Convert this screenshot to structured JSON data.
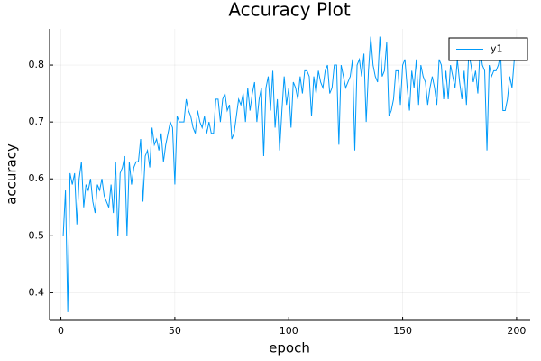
{
  "chart_data": {
    "type": "line",
    "title": "Accuracy Plot",
    "x_label": "epoch",
    "y_label": "accuracy",
    "x": [
      1,
      2,
      3,
      4,
      5,
      6,
      7,
      8,
      9,
      10,
      11,
      12,
      13,
      14,
      15,
      16,
      17,
      18,
      19,
      20,
      21,
      22,
      23,
      24,
      25,
      26,
      27,
      28,
      29,
      30,
      31,
      32,
      33,
      34,
      35,
      36,
      37,
      38,
      39,
      40,
      41,
      42,
      43,
      44,
      45,
      46,
      47,
      48,
      49,
      50,
      51,
      52,
      53,
      54,
      55,
      56,
      57,
      58,
      59,
      60,
      61,
      62,
      63,
      64,
      65,
      66,
      67,
      68,
      69,
      70,
      71,
      72,
      73,
      74,
      75,
      76,
      77,
      78,
      79,
      80,
      81,
      82,
      83,
      84,
      85,
      86,
      87,
      88,
      89,
      90,
      91,
      92,
      93,
      94,
      95,
      96,
      97,
      98,
      99,
      100,
      101,
      102,
      103,
      104,
      105,
      106,
      107,
      108,
      109,
      110,
      111,
      112,
      113,
      114,
      115,
      116,
      117,
      118,
      119,
      120,
      121,
      122,
      123,
      124,
      125,
      126,
      127,
      128,
      129,
      130,
      131,
      132,
      133,
      134,
      135,
      136,
      137,
      138,
      139,
      140,
      141,
      142,
      143,
      144,
      145,
      146,
      147,
      148,
      149,
      150,
      151,
      152,
      153,
      154,
      155,
      156,
      157,
      158,
      159,
      160,
      161,
      162,
      163,
      164,
      165,
      166,
      167,
      168,
      169,
      170,
      171,
      172,
      173,
      174,
      175,
      176,
      177,
      178,
      179,
      180,
      181,
      182,
      183,
      184,
      185,
      186,
      187,
      188,
      189,
      190,
      191,
      192,
      193,
      194,
      195,
      196,
      197,
      198,
      199,
      200
    ],
    "series": [
      {
        "name": "y1",
        "color": "#009af9",
        "values": [
          0.5,
          0.58,
          0.366,
          0.61,
          0.59,
          0.61,
          0.52,
          0.6,
          0.63,
          0.55,
          0.59,
          0.58,
          0.6,
          0.56,
          0.54,
          0.59,
          0.58,
          0.6,
          0.57,
          0.56,
          0.55,
          0.59,
          0.54,
          0.63,
          0.5,
          0.61,
          0.62,
          0.64,
          0.5,
          0.63,
          0.59,
          0.62,
          0.63,
          0.63,
          0.67,
          0.56,
          0.64,
          0.65,
          0.62,
          0.69,
          0.66,
          0.67,
          0.65,
          0.68,
          0.63,
          0.66,
          0.68,
          0.7,
          0.69,
          0.59,
          0.71,
          0.7,
          0.7,
          0.7,
          0.74,
          0.72,
          0.71,
          0.69,
          0.68,
          0.72,
          0.7,
          0.69,
          0.71,
          0.68,
          0.7,
          0.68,
          0.68,
          0.74,
          0.74,
          0.7,
          0.74,
          0.75,
          0.72,
          0.73,
          0.67,
          0.68,
          0.71,
          0.74,
          0.73,
          0.75,
          0.7,
          0.76,
          0.72,
          0.75,
          0.77,
          0.7,
          0.74,
          0.76,
          0.64,
          0.76,
          0.78,
          0.72,
          0.79,
          0.69,
          0.74,
          0.65,
          0.72,
          0.78,
          0.73,
          0.76,
          0.69,
          0.77,
          0.76,
          0.74,
          0.78,
          0.75,
          0.79,
          0.79,
          0.78,
          0.71,
          0.78,
          0.75,
          0.79,
          0.77,
          0.76,
          0.79,
          0.8,
          0.75,
          0.76,
          0.8,
          0.8,
          0.66,
          0.8,
          0.78,
          0.76,
          0.77,
          0.78,
          0.81,
          0.65,
          0.8,
          0.81,
          0.78,
          0.82,
          0.7,
          0.79,
          0.85,
          0.8,
          0.78,
          0.77,
          0.85,
          0.78,
          0.79,
          0.84,
          0.71,
          0.72,
          0.74,
          0.79,
          0.79,
          0.73,
          0.8,
          0.81,
          0.76,
          0.72,
          0.79,
          0.76,
          0.81,
          0.73,
          0.8,
          0.78,
          0.77,
          0.73,
          0.76,
          0.78,
          0.76,
          0.73,
          0.81,
          0.8,
          0.74,
          0.79,
          0.74,
          0.8,
          0.78,
          0.76,
          0.81,
          0.77,
          0.74,
          0.79,
          0.73,
          0.82,
          0.8,
          0.77,
          0.79,
          0.75,
          0.83,
          0.8,
          0.79,
          0.65,
          0.8,
          0.78,
          0.79,
          0.79,
          0.8,
          0.82,
          0.72,
          0.72,
          0.74,
          0.78,
          0.76,
          0.81,
          0.81
        ]
      }
    ],
    "xlim": [
      -4.97,
      205.97
    ],
    "xticks": [
      0,
      50,
      100,
      150,
      200
    ],
    "ylim": [
      0.3515,
      0.8635
    ],
    "yticks": [
      0.4,
      0.5,
      0.6,
      0.7,
      0.8
    ],
    "grid": true,
    "legend": "top-right"
  }
}
